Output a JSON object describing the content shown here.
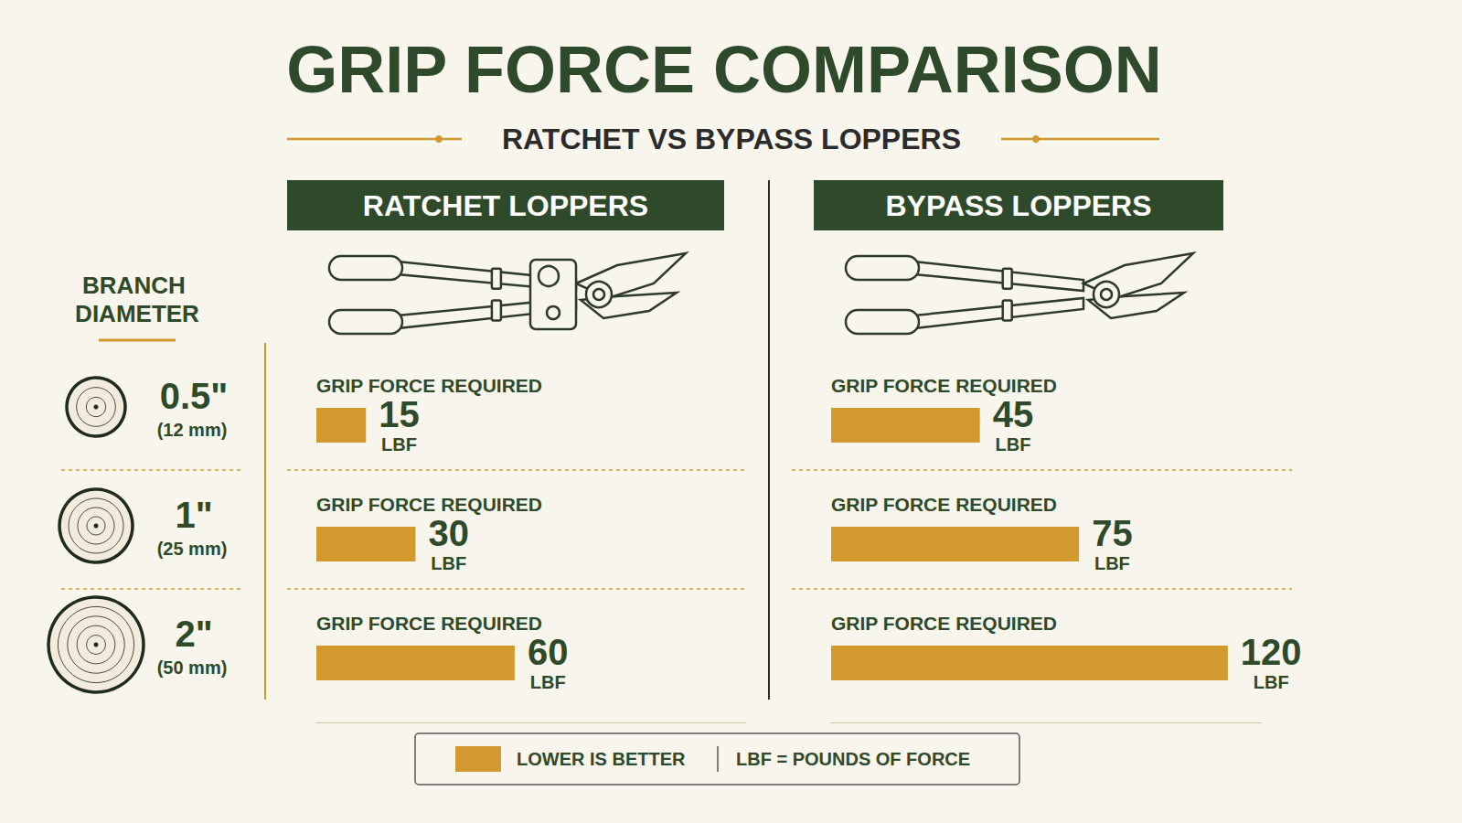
{
  "title": "GRIP FORCE COMPARISON",
  "subtitle": "RATCHET VS BYPASS LOPPERS",
  "row_header": "BRANCH DIAMETER",
  "category_notes": [
    "(12 mm)",
    "(25 mm)",
    "(50 mm)"
  ],
  "legend_notes": [
    "LOWER IS BETTER",
    "LBF = POUNDS OF FORCE"
  ],
  "chart_data": [
    {
      "type": "bar",
      "title": "RATCHET LOPPERS",
      "orientation": "horizontal",
      "categories": [
        "0.5\"",
        "1\"",
        "2\""
      ],
      "values": [
        15,
        30,
        60
      ],
      "color": "#d29a2e",
      "xlim": [
        0,
        130
      ],
      "tick_labels": false,
      "grid": false,
      "data_labels": true,
      "bar_label": "GRIP FORCE REQUIRED",
      "unit": "LBF"
    },
    {
      "type": "bar",
      "title": "BYPASS LOPPERS",
      "orientation": "horizontal",
      "categories": [
        "0.5\"",
        "1\"",
        "2\""
      ],
      "values": [
        45,
        75,
        120
      ],
      "color": "#d29a2e",
      "xlim": [
        0,
        130
      ],
      "tick_labels": false,
      "grid": false,
      "data_labels": true,
      "bar_label": "GRIP FORCE REQUIRED",
      "unit": "LBF"
    }
  ]
}
